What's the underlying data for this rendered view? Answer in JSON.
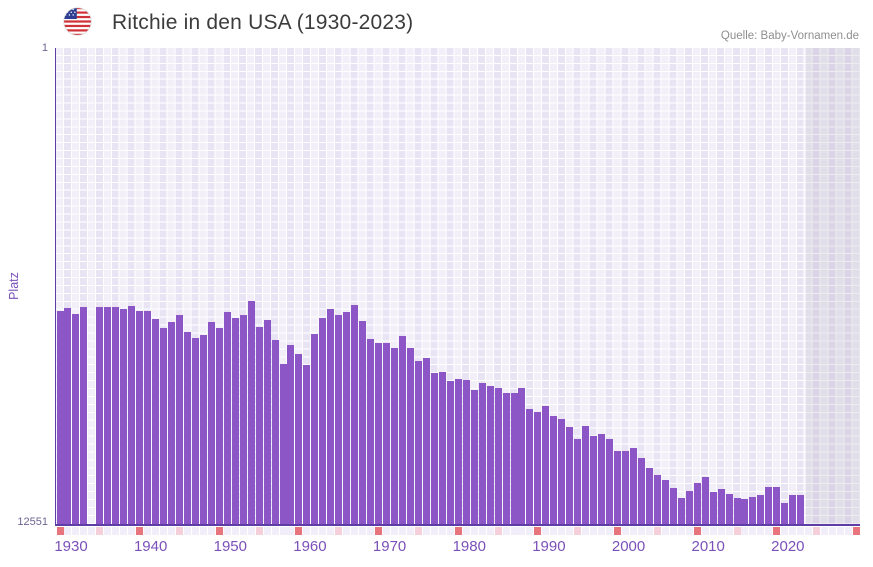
{
  "header": {
    "title": "Ritchie in den USA (1930-2023)",
    "source": "Quelle: Baby-Vornamen.de",
    "flag_icon": "us-flag"
  },
  "axes": {
    "y_label": "Platz",
    "y_tick_top": "1",
    "y_tick_bottom": "12551"
  },
  "colors": {
    "bar": "#8d56c6",
    "accent_purple": "#7b50b8",
    "axis_line": "#5f3da6",
    "tick_decade": "#e8747c",
    "tick_half_decade": "#f5cfd9",
    "tick_plain": "#f1edf9",
    "title_text": "#3c3c3c",
    "source_text": "#8f8f8f"
  },
  "chart_data": {
    "type": "bar",
    "title": "Ritchie in den USA (1930-2023)",
    "xlabel": "",
    "ylabel": "Platz",
    "y_axis_inverted": true,
    "ylim": [
      1,
      12551
    ],
    "y_tick_labels": [
      "1",
      "12551"
    ],
    "grid": true,
    "legend": false,
    "x_range_drawn": [
      1930,
      2030
    ],
    "future_shaded_from": 2024,
    "x_tick_labels": [
      1930,
      1940,
      1950,
      1960,
      1970,
      1980,
      1990,
      2000,
      2010,
      2020
    ],
    "missing_years": [
      1934
    ],
    "x": [
      1930,
      1931,
      1932,
      1933,
      1934,
      1935,
      1936,
      1937,
      1938,
      1939,
      1940,
      1941,
      1942,
      1943,
      1944,
      1945,
      1946,
      1947,
      1948,
      1949,
      1950,
      1951,
      1952,
      1953,
      1954,
      1955,
      1956,
      1957,
      1958,
      1959,
      1960,
      1961,
      1962,
      1963,
      1964,
      1965,
      1966,
      1967,
      1968,
      1969,
      1970,
      1971,
      1972,
      1973,
      1974,
      1975,
      1976,
      1977,
      1978,
      1979,
      1980,
      1981,
      1982,
      1983,
      1984,
      1985,
      1986,
      1987,
      1988,
      1989,
      1990,
      1991,
      1992,
      1993,
      1994,
      1995,
      1996,
      1997,
      1998,
      1999,
      2000,
      2001,
      2002,
      2003,
      2004,
      2005,
      2006,
      2007,
      2008,
      2009,
      2010,
      2011,
      2012,
      2013,
      2014,
      2015,
      2016,
      2017,
      2018,
      2019,
      2020,
      2021,
      2022,
      2023
    ],
    "values": [
      6925,
      6865,
      7005,
      6840,
      null,
      6840,
      6840,
      6840,
      6880,
      6800,
      6925,
      6925,
      7150,
      7390,
      7225,
      7030,
      7490,
      7635,
      7570,
      7215,
      7375,
      6970,
      7130,
      7040,
      6670,
      7360,
      7180,
      7710,
      8320,
      7830,
      8075,
      8365,
      7545,
      7110,
      6890,
      7040,
      6955,
      6785,
      7200,
      7665,
      7770,
      7770,
      7900,
      7580,
      7920,
      8255,
      8165,
      8560,
      8535,
      8780,
      8730,
      8755,
      9020,
      8825,
      8910,
      8975,
      9090,
      9090,
      8975,
      9510,
      9590,
      9440,
      9705,
      9790,
      9985,
      10320,
      9965,
      10230,
      10185,
      10300,
      10625,
      10625,
      10545,
      10820,
      11065,
      11260,
      11390,
      11600,
      11875,
      11675,
      11480,
      11320,
      11700,
      11635,
      11760,
      11865,
      11890,
      11830,
      11785,
      11575,
      11565,
      12005,
      11785,
      11785
    ]
  }
}
